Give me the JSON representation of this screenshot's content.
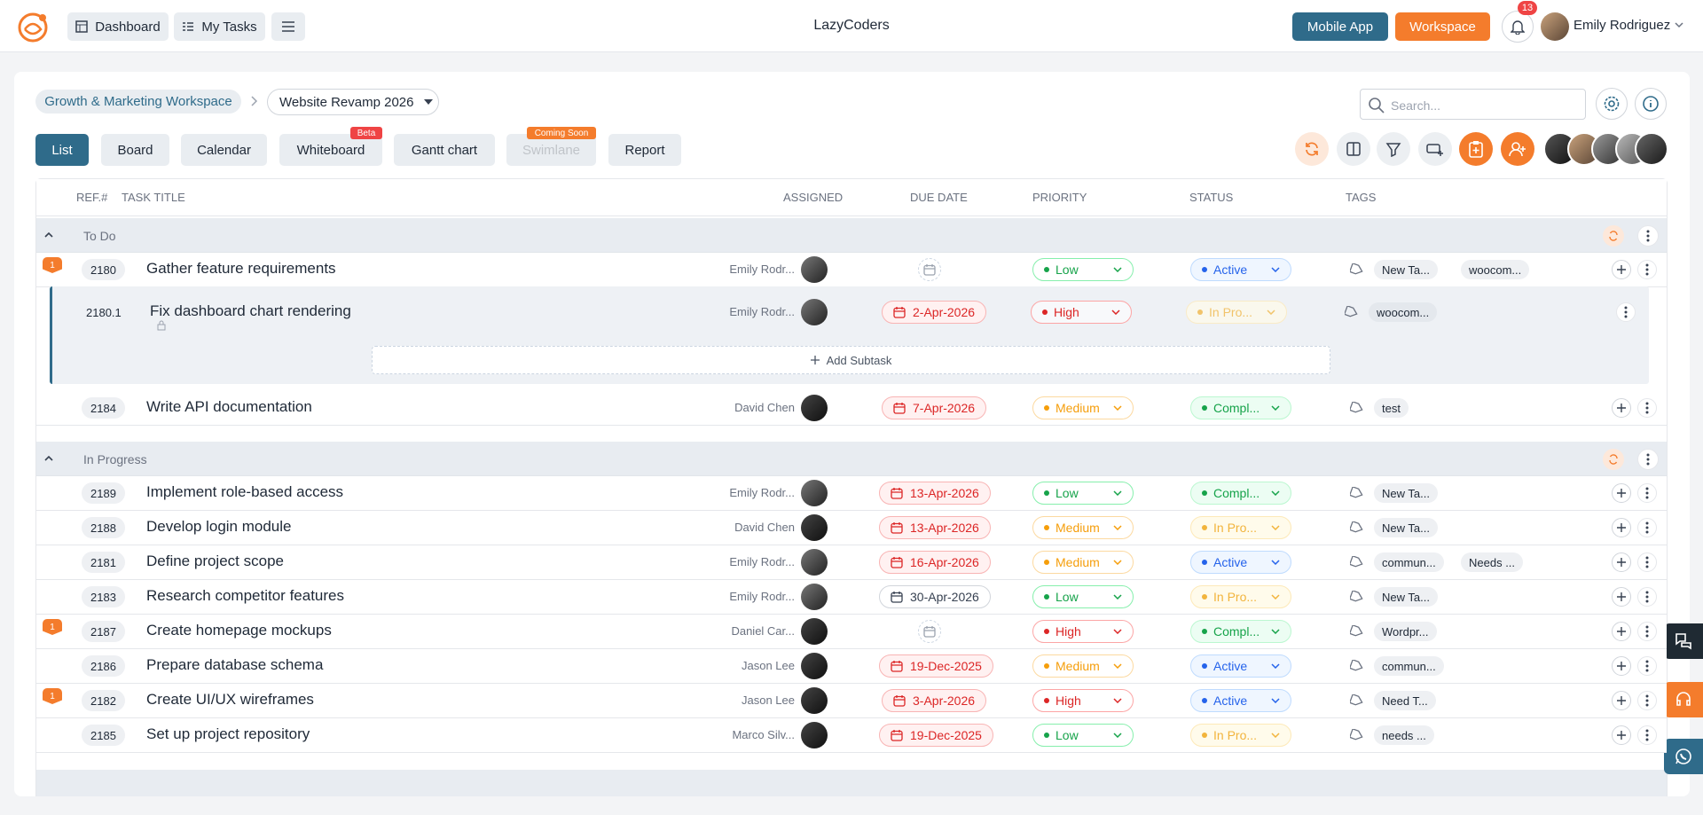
{
  "header": {
    "nav": [
      "Dashboard",
      "My Tasks"
    ],
    "app_name": "LazyCoders",
    "mobile_app": "Mobile App",
    "workspace": "Workspace",
    "notification_count": 13,
    "user_name": "Emily Rodriguez"
  },
  "breadcrumb": {
    "workspace": "Growth & Marketing Workspace",
    "project": "Website Revamp 2026"
  },
  "search_placeholder": "Search...",
  "tabs": [
    {
      "label": "List",
      "active": true
    },
    {
      "label": "Board"
    },
    {
      "label": "Calendar"
    },
    {
      "label": "Whiteboard",
      "badge": "Beta"
    },
    {
      "label": "Gantt chart"
    },
    {
      "label": "Swimlane",
      "badge": "Coming Soon",
      "disabled": true
    },
    {
      "label": "Report"
    }
  ],
  "columns": [
    "REF.#",
    "TASK TITLE",
    "ASSIGNED",
    "DUE DATE",
    "PRIORITY",
    "STATUS",
    "TAGS"
  ],
  "add_subtask": "Add Subtask",
  "groups": [
    {
      "name": "To Do",
      "tasks": [
        {
          "flag": "1",
          "ref": "2180",
          "title": "Gather feature requirements",
          "assignee": "Emily Rodr...",
          "priority": "Low",
          "status": "Active",
          "tags": [
            "New Ta...",
            "woocom..."
          ],
          "subtasks": [
            {
              "ref": "2180.1",
              "title": "Fix dashboard chart rendering",
              "assignee": "Emily Rodr...",
              "due": "2-Apr-2026",
              "overdue": true,
              "priority": "High",
              "status": "In Pro...",
              "tags": [
                "woocom..."
              ]
            }
          ]
        },
        {
          "ref": "2184",
          "title": "Write API documentation",
          "assignee": "David Chen",
          "due": "7-Apr-2026",
          "overdue": true,
          "priority": "Medium",
          "status": "Compl...",
          "tags": [
            "test"
          ]
        }
      ]
    },
    {
      "name": "In Progress",
      "tasks": [
        {
          "ref": "2189",
          "title": "Implement role-based access",
          "assignee": "Emily Rodr...",
          "due": "13-Apr-2026",
          "overdue": true,
          "priority": "Low",
          "status": "Compl...",
          "tags": [
            "New Ta..."
          ]
        },
        {
          "ref": "2188",
          "title": "Develop login module",
          "assignee": "David Chen",
          "due": "13-Apr-2026",
          "overdue": true,
          "priority": "Medium",
          "status": "In Pro...",
          "tags": [
            "New Ta..."
          ]
        },
        {
          "ref": "2181",
          "title": "Define project scope",
          "assignee": "Emily Rodr...",
          "due": "16-Apr-2026",
          "overdue": true,
          "priority": "Medium",
          "status": "Active",
          "tags": [
            "commun...",
            "Needs ..."
          ]
        },
        {
          "ref": "2183",
          "title": "Research competitor features",
          "assignee": "Emily Rodr...",
          "due": "30-Apr-2026",
          "overdue": false,
          "priority": "Low",
          "status": "In Pro...",
          "tags": [
            "New Ta..."
          ]
        },
        {
          "flag": "1",
          "ref": "2187",
          "title": "Create homepage mockups",
          "assignee": "Daniel Car...",
          "priority": "High",
          "status": "Compl...",
          "tags": [
            "Wordpr..."
          ]
        },
        {
          "ref": "2186",
          "title": "Prepare database schema",
          "assignee": "Jason Lee",
          "due": "19-Dec-2025",
          "overdue": true,
          "priority": "Medium",
          "status": "Active",
          "tags": [
            "commun..."
          ]
        },
        {
          "flag": "1",
          "ref": "2182",
          "title": "Create UI/UX wireframes",
          "assignee": "Jason Lee",
          "due": "3-Apr-2026",
          "overdue": true,
          "priority": "High",
          "status": "Active",
          "tags": [
            "Need T..."
          ]
        },
        {
          "ref": "2185",
          "title": "Set up project repository",
          "assignee": "Marco Silv...",
          "due": "19-Dec-2025",
          "overdue": true,
          "priority": "Low",
          "status": "In Pro...",
          "tags": [
            "needs ..."
          ]
        }
      ]
    }
  ]
}
